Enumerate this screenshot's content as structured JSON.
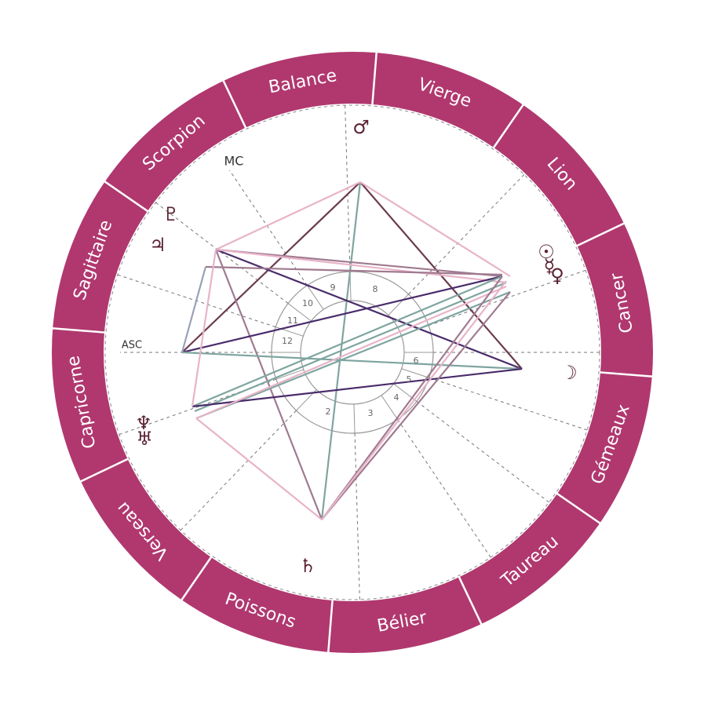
{
  "signs": [
    "Capricorne",
    "Sagittaire",
    "Scorpion",
    "Balance",
    "Vierge",
    "Lion",
    "Cancer",
    "Gémeaux",
    "Taureau",
    "Bélier",
    "Poissons",
    "Verseau"
  ],
  "angles": {
    "asc": "ASC",
    "mc": "MC"
  },
  "houses": [
    "2",
    "3",
    "4",
    "5",
    "6",
    "8",
    "9",
    "10",
    "11",
    "12"
  ],
  "planets": {
    "mars": "♂",
    "pluto": "♇",
    "jupiter": "♃",
    "sun": "☉",
    "mercury": "☿",
    "venus": "♀",
    "moon": "☽",
    "neptune": "♆",
    "uranus": "♅",
    "saturn": "♄"
  }
}
